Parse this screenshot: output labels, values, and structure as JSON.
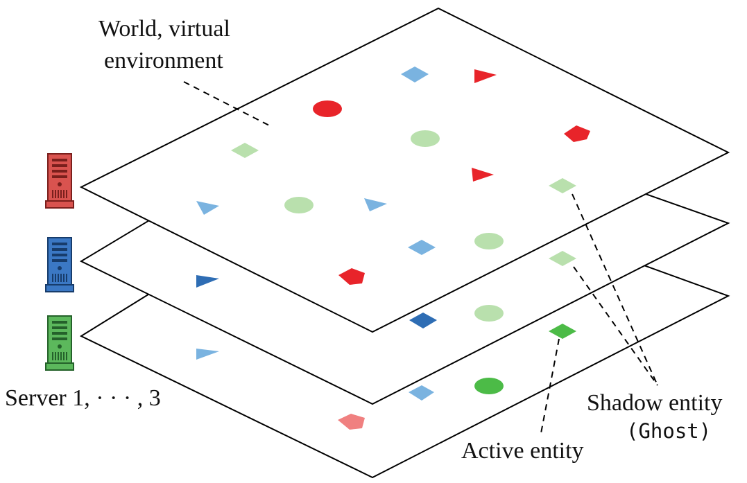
{
  "labels": {
    "world_line1": "World, virtual",
    "world_line2": "environment",
    "servers": "Server 1, · · · , 3",
    "shadow_line1": "Shadow entity",
    "shadow_line2": "(Ghost)",
    "active": "Active entity"
  },
  "servers": [
    {
      "name": "server-1",
      "color": "#d9534f",
      "dark": "#7a1f1c"
    },
    {
      "name": "server-2",
      "color": "#3b78c4",
      "dark": "#173c6b"
    },
    {
      "name": "server-3",
      "color": "#5cb85c",
      "dark": "#24612a"
    }
  ],
  "colors": {
    "red": "#e8242a",
    "red_faded": "#f08080",
    "blue": "#7ab3e0",
    "blue_dark": "#2e6db4",
    "green_light": "#b9e0ad",
    "green": "#4cbb47",
    "outline": "#000000"
  },
  "entity_shapes": [
    "circle",
    "diamond",
    "triangle",
    "pentagon"
  ]
}
